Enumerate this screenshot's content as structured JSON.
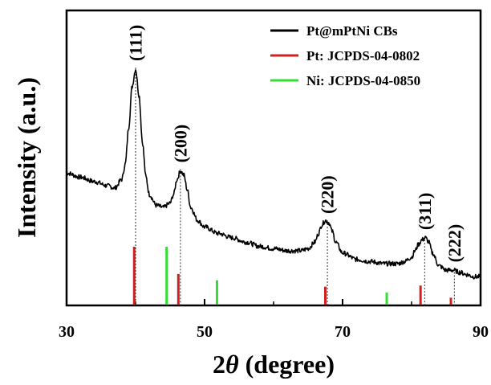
{
  "chart_data": {
    "type": "line",
    "xlabel_prefix": "2",
    "xlabel_symbol": "θ",
    "xlabel_suffix": " (degree)",
    "ylabel": "Intensity (a.u.)",
    "xlim": [
      30,
      90
    ],
    "xticks": [
      "30",
      "50",
      "70",
      "90"
    ],
    "grid": false,
    "legend_position": "top-right",
    "series": [
      {
        "name": "Pt@mPtNi CBs",
        "color": "#000000",
        "x": [
          30,
          32,
          34,
          36,
          37,
          38,
          38.5,
          39,
          39.5,
          40,
          40.5,
          41,
          41.5,
          42,
          43,
          44,
          45,
          45.5,
          46,
          46.5,
          47,
          47.5,
          48,
          49,
          50,
          52,
          54,
          56,
          58,
          60,
          62,
          64,
          65,
          66,
          66.5,
          67,
          67.5,
          68,
          68.5,
          69,
          70,
          72,
          74,
          76,
          78,
          79,
          80,
          80.5,
          81,
          81.5,
          82,
          82.5,
          83,
          84,
          85,
          86,
          87,
          88,
          89,
          90
        ],
        "y": [
          0.52,
          0.5,
          0.48,
          0.46,
          0.45,
          0.49,
          0.56,
          0.73,
          0.92,
          1.0,
          0.88,
          0.66,
          0.5,
          0.42,
          0.37,
          0.36,
          0.38,
          0.42,
          0.49,
          0.53,
          0.51,
          0.44,
          0.36,
          0.3,
          0.27,
          0.24,
          0.22,
          0.2,
          0.18,
          0.17,
          0.16,
          0.16,
          0.17,
          0.2,
          0.24,
          0.28,
          0.3,
          0.29,
          0.25,
          0.2,
          0.15,
          0.12,
          0.11,
          0.1,
          0.1,
          0.11,
          0.13,
          0.16,
          0.19,
          0.21,
          0.22,
          0.2,
          0.15,
          0.09,
          0.07,
          0.07,
          0.06,
          0.05,
          0.04,
          0.04
        ]
      }
    ],
    "reference_series": [
      {
        "name": "Pt: JCPDS-04-0802",
        "color": "#cc2222",
        "x": [
          39.8,
          46.2,
          67.5,
          81.3,
          85.7
        ],
        "intensity": [
          100,
          53,
          31,
          33,
          12
        ]
      },
      {
        "name": "Ni: JCPDS-04-0850",
        "color": "#33dd33",
        "x": [
          44.5,
          51.8,
          76.4
        ],
        "intensity": [
          100,
          42,
          21
        ]
      }
    ],
    "peak_labels": [
      {
        "text": "(111)",
        "x": 40.0
      },
      {
        "text": "(200)",
        "x": 46.5
      },
      {
        "text": "(220)",
        "x": 67.8
      },
      {
        "text": "(311)",
        "x": 81.9
      },
      {
        "text": "(222)",
        "x": 86.2
      }
    ]
  }
}
